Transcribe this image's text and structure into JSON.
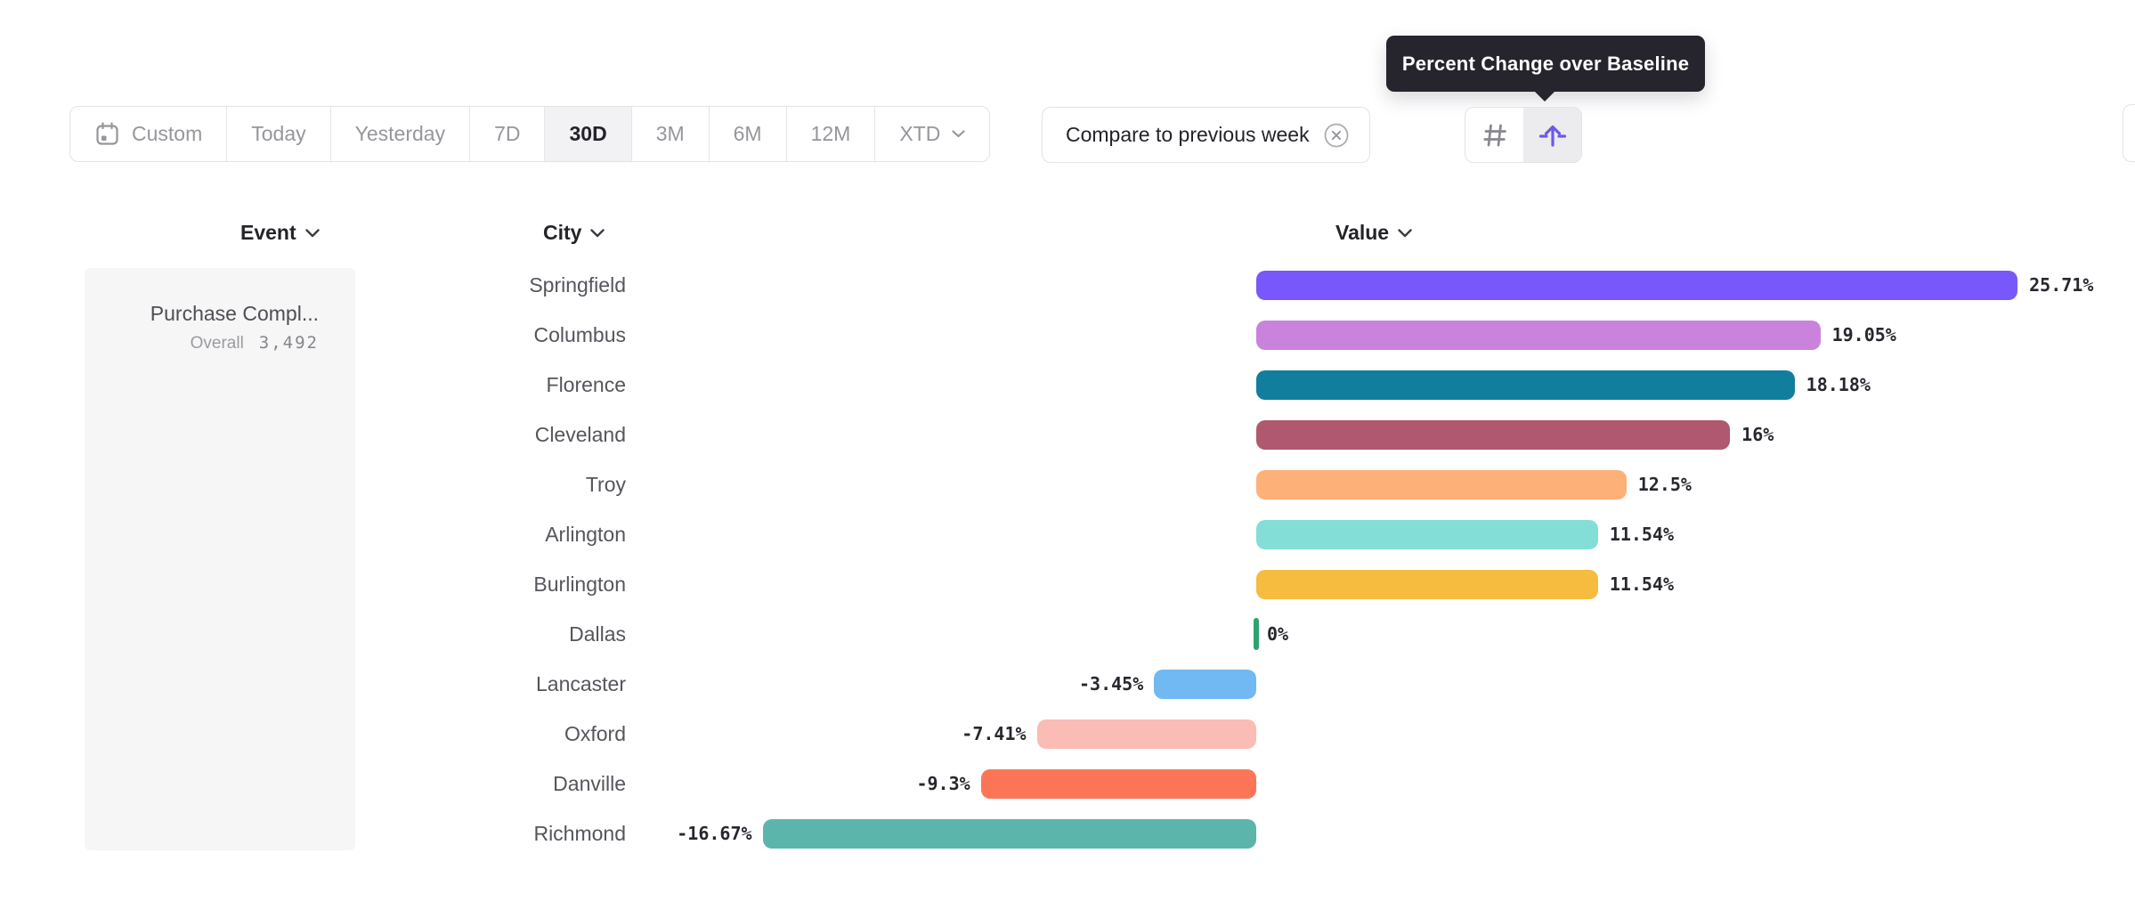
{
  "tooltip": {
    "text": "Percent Change over Baseline"
  },
  "date_range_toolbar": {
    "items": [
      {
        "label": "Custom",
        "icon": "calendar-icon",
        "selected": false
      },
      {
        "label": "Today",
        "selected": false
      },
      {
        "label": "Yesterday",
        "selected": false
      },
      {
        "label": "7D",
        "selected": false
      },
      {
        "label": "30D",
        "selected": true
      },
      {
        "label": "3M",
        "selected": false
      },
      {
        "label": "6M",
        "selected": false
      },
      {
        "label": "12M",
        "selected": false
      },
      {
        "label": "XTD",
        "selected": false,
        "has_chevron": true
      }
    ]
  },
  "compare_pill": {
    "label": "Compare to previous week",
    "icon": "circle-x-icon"
  },
  "view_toggle": {
    "buttons": [
      {
        "name": "numbers-view",
        "icon": "hash-icon",
        "selected": false,
        "color": "#87878d"
      },
      {
        "name": "percent-change-view",
        "icon": "lift-arrow-icon",
        "selected": true,
        "color": "#6c59e8"
      }
    ]
  },
  "columns": {
    "event": "Event",
    "city": "City",
    "value": "Value"
  },
  "event_panel": {
    "event_name": "Purchase Compl...",
    "overall_label": "Overall",
    "overall_value": "3,492"
  },
  "chart_data": {
    "type": "bar",
    "orientation": "horizontal",
    "title": "Percent Change over Baseline",
    "unit": "percent",
    "baseline": 0,
    "xlim": [
      -17,
      26
    ],
    "categories": [
      "Springfield",
      "Columbus",
      "Florence",
      "Cleveland",
      "Troy",
      "Arlington",
      "Burlington",
      "Dallas",
      "Lancaster",
      "Oxford",
      "Danville",
      "Richmond"
    ],
    "values": [
      25.71,
      19.05,
      18.18,
      16,
      12.5,
      11.54,
      11.54,
      0,
      -3.45,
      -7.41,
      -9.3,
      -16.67
    ],
    "labels": [
      "25.71%",
      "19.05%",
      "18.18%",
      "16%",
      "12.5%",
      "11.54%",
      "11.54%",
      "0%",
      "-3.45%",
      "-7.41%",
      "-9.3%",
      "-16.67%"
    ],
    "colors": [
      "#7857fb",
      "#c983dc",
      "#117e9e",
      "#b0586e",
      "#fdb077",
      "#83ded8",
      "#f5bc40",
      "#2fa26e",
      "#70b9f2",
      "#fbbcb6",
      "#fd7557",
      "#5bb5ab"
    ]
  }
}
